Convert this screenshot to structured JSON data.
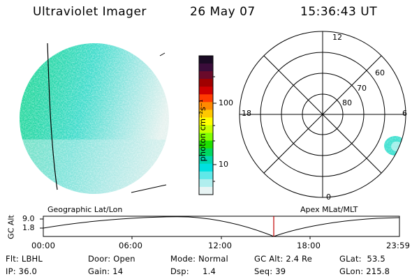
{
  "header": {
    "instrument": "Ultraviolet Imager",
    "date": "26 May 07",
    "time": "15:36:43 UT"
  },
  "colorbar": {
    "unit_label": "photon cm⁻²s⁻¹",
    "ticks": [
      "100",
      "10"
    ],
    "colors": [
      "#1a0a24",
      "#3a0c3a",
      "#6a0a2a",
      "#a00000",
      "#d00000",
      "#ff3a00",
      "#ff8a00",
      "#ffc800",
      "#ffff00",
      "#c8ff00",
      "#80ff00",
      "#20e000",
      "#00d860",
      "#00d8b0",
      "#00e0e0",
      "#60e8e8",
      "#b0eeee",
      "#e8f4f4"
    ]
  },
  "left_panel": {
    "caption": "Geographic Lat/Lon"
  },
  "polar_plot": {
    "caption": "Apex MLat/MLT",
    "mlt_labels": {
      "top": "12",
      "left": "18",
      "right": "6",
      "bottom": "0"
    },
    "lat_labels": [
      "60",
      "70",
      "80"
    ]
  },
  "altitude_plot": {
    "ylabel": "GC Alt",
    "yticks": [
      "9.0",
      "1.8"
    ],
    "xticks": [
      "00:00",
      "06:00",
      "12:00",
      "18:00",
      "23:59"
    ],
    "current_time_marker": "15:36"
  },
  "status": {
    "row1": [
      {
        "label": "Flt:",
        "value": "LBHL"
      },
      {
        "label": "Door:",
        "value": "Open"
      },
      {
        "label": "Mode:",
        "value": "Normal"
      },
      {
        "label": "GC Alt:",
        "value": "2.4 Re"
      },
      {
        "label": "GLat:",
        "value": "53.5"
      }
    ],
    "row2": [
      {
        "label": "IP:",
        "value": "36.0"
      },
      {
        "label": "Gain:",
        "value": "14"
      },
      {
        "label": "Dsp:",
        "value": "1.4"
      },
      {
        "label": "Seq:",
        "value": "39"
      },
      {
        "label": "GLon:",
        "value": "215.8"
      }
    ]
  }
}
